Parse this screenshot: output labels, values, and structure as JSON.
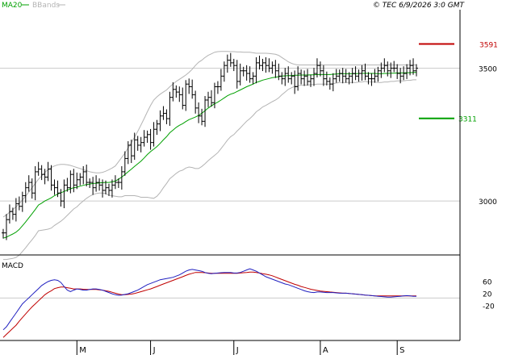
{
  "header": {
    "ma_label": "MA20",
    "bb_label": "BBands",
    "copyright": "© TEC 6/9/2026 3:0 GMT"
  },
  "colors": {
    "ma": "#00a000",
    "bb": "#b4b4b4",
    "price": "#000000",
    "resistance": "#c00000",
    "support": "#00a000",
    "macd": "#2020c0",
    "signal": "#c00000",
    "grid": "#cccccc",
    "axis": "#000000"
  },
  "chart_data": [
    {
      "type": "ohlc",
      "title": "",
      "y_ticks": [
        {
          "value": 3000,
          "label": "3000"
        },
        {
          "value": 3500,
          "label": "3500"
        }
      ],
      "ylim": [
        2800,
        3720
      ],
      "resistance": {
        "value": 3591,
        "label": "3591"
      },
      "support": {
        "value": 3311,
        "label": "3311"
      },
      "months": [
        {
          "label": "M",
          "index": 23
        },
        {
          "label": "J",
          "index": 46
        },
        {
          "label": "J",
          "index": 72
        },
        {
          "label": "A",
          "index": 99
        },
        {
          "label": "S",
          "index": 123
        }
      ],
      "close": [
        2880,
        2930,
        2960,
        2950,
        2990,
        2980,
        3020,
        3050,
        3070,
        3030,
        3110,
        3120,
        3100,
        3090,
        3120,
        3060,
        3050,
        3030,
        3000,
        3060,
        3050,
        3100,
        3060,
        3080,
        3090,
        3110,
        3070,
        3070,
        3050,
        3070,
        3060,
        3040,
        3050,
        3040,
        3060,
        3070,
        3070,
        3110,
        3160,
        3210,
        3170,
        3230,
        3210,
        3220,
        3240,
        3250,
        3220,
        3270,
        3290,
        3320,
        3330,
        3310,
        3390,
        3420,
        3410,
        3400,
        3360,
        3440,
        3430,
        3400,
        3350,
        3320,
        3300,
        3380,
        3390,
        3370,
        3430,
        3430,
        3470,
        3510,
        3530,
        3520,
        3510,
        3450,
        3490,
        3490,
        3480,
        3460,
        3470,
        3520,
        3510,
        3520,
        3510,
        3500,
        3510,
        3490,
        3470,
        3460,
        3480,
        3460,
        3470,
        3430,
        3480,
        3460,
        3470,
        3450,
        3460,
        3480,
        3510,
        3490,
        3460,
        3450,
        3440,
        3460,
        3470,
        3480,
        3470,
        3460,
        3470,
        3480,
        3470,
        3480,
        3490,
        3470,
        3460,
        3460,
        3470,
        3490,
        3500,
        3510,
        3490,
        3500,
        3500,
        3480,
        3470,
        3480,
        3500,
        3510,
        3490,
        3500
      ],
      "ma20": [
        2860,
        2864,
        2870,
        2876,
        2883,
        2893,
        2907,
        2921,
        2937,
        2952,
        2968,
        2985,
        2992,
        3000,
        3006,
        3012,
        3020,
        3026,
        3031,
        3036,
        3041,
        3046,
        3050,
        3052,
        3056,
        3059,
        3062,
        3064,
        3066,
        3067,
        3068,
        3069,
        3070,
        3070,
        3072,
        3075,
        3082,
        3090,
        3100,
        3110,
        3120,
        3130,
        3140,
        3150,
        3162,
        3175,
        3186,
        3195,
        3205,
        3217,
        3230,
        3242,
        3257,
        3267,
        3277,
        3285,
        3291,
        3299,
        3306,
        3311,
        3316,
        3322,
        3330,
        3340,
        3350,
        3358,
        3366,
        3372,
        3380,
        3388,
        3396,
        3402,
        3406,
        3412,
        3418,
        3424,
        3430,
        3435,
        3440,
        3446,
        3450,
        3455,
        3458,
        3461,
        3464,
        3466,
        3468,
        3470,
        3471,
        3472,
        3472,
        3473,
        3473,
        3474,
        3474,
        3474,
        3475,
        3475,
        3476,
        3476,
        3476,
        3476,
        3476,
        3477,
        3478,
        3479,
        3479,
        3479,
        3479,
        3479,
        3479,
        3480,
        3480,
        3481,
        3480,
        3480,
        3480,
        3479,
        3479,
        3480,
        3480,
        3481,
        3481,
        3482,
        3482,
        3482,
        3483,
        3483,
        3484,
        3484
      ],
      "bb_upper": [
        2940,
        2948,
        2958,
        2968,
        2978,
        2990,
        3004,
        3018,
        3034,
        3050,
        3066,
        3082,
        3094,
        3108,
        3118,
        3126,
        3132,
        3136,
        3138,
        3138,
        3136,
        3134,
        3130,
        3126,
        3122,
        3118,
        3114,
        3110,
        3108,
        3106,
        3106,
        3108,
        3112,
        3118,
        3124,
        3132,
        3148,
        3164,
        3180,
        3200,
        3220,
        3240,
        3262,
        3286,
        3310,
        3336,
        3360,
        3380,
        3392,
        3402,
        3410,
        3418,
        3430,
        3440,
        3450,
        3458,
        3466,
        3474,
        3484,
        3496,
        3510,
        3522,
        3530,
        3540,
        3548,
        3554,
        3560,
        3562,
        3563,
        3563,
        3563,
        3562,
        3562,
        3561,
        3561,
        3560,
        3560,
        3560,
        3558,
        3556,
        3556,
        3556,
        3556,
        3555,
        3554,
        3552,
        3548,
        3540,
        3532,
        3524,
        3518,
        3514,
        3512,
        3512,
        3512,
        3512,
        3512,
        3512,
        3512,
        3512,
        3512,
        3512,
        3512,
        3512,
        3512,
        3512,
        3512,
        3512,
        3512,
        3512,
        3512,
        3512,
        3512,
        3512,
        3512,
        3512,
        3512,
        3512,
        3512,
        3512,
        3512,
        3512,
        3512,
        3512,
        3512,
        3512,
        3512,
        3512,
        3512,
        3512
      ],
      "bb_lower": [
        2780,
        2780,
        2782,
        2784,
        2788,
        2796,
        2810,
        2824,
        2840,
        2854,
        2870,
        2888,
        2890,
        2892,
        2894,
        2898,
        2908,
        2916,
        2924,
        2934,
        2946,
        2958,
        2970,
        2978,
        2990,
        3000,
        3010,
        3018,
        3024,
        3028,
        3030,
        3030,
        3028,
        3022,
        3020,
        3018,
        3016,
        3016,
        3020,
        3020,
        3020,
        3020,
        3018,
        3014,
        3014,
        3014,
        3012,
        3010,
        3018,
        3032,
        3050,
        3066,
        3084,
        3094,
        3104,
        3112,
        3116,
        3124,
        3128,
        3126,
        3122,
        3122,
        3130,
        3140,
        3152,
        3162,
        3172,
        3182,
        3197,
        3213,
        3229,
        3242,
        3250,
        3263,
        3275,
        3288,
        3300,
        3310,
        3322,
        3336,
        3344,
        3354,
        3360,
        3367,
        3374,
        3380,
        3388,
        3400,
        3410,
        3420,
        3426,
        3432,
        3434,
        3436,
        3436,
        3436,
        3438,
        3438,
        3440,
        3440,
        3440,
        3440,
        3440,
        3442,
        3444,
        3446,
        3446,
        3446,
        3446,
        3446,
        3446,
        3448,
        3448,
        3450,
        3448,
        3448,
        3448,
        3446,
        3446,
        3448,
        3448,
        3450,
        3450,
        3452,
        3452,
        3452,
        3454,
        3454,
        3456,
        3456
      ]
    },
    {
      "type": "line",
      "title": "MACD",
      "y_ticks": [
        {
          "value": 60,
          "label": "60"
        },
        {
          "value": 20,
          "label": "20"
        },
        {
          "value": -20,
          "label": "-20"
        }
      ],
      "ylim": [
        -135,
        140
      ],
      "macd": [
        -100,
        -90,
        -75,
        -60,
        -45,
        -30,
        -15,
        -5,
        5,
        15,
        25,
        35,
        45,
        52,
        58,
        62,
        64,
        62,
        55,
        42,
        30,
        25,
        30,
        34,
        32,
        30,
        30,
        32,
        34,
        34,
        32,
        30,
        26,
        22,
        18,
        15,
        13,
        14,
        16,
        18,
        22,
        26,
        30,
        36,
        42,
        48,
        52,
        56,
        60,
        64,
        66,
        68,
        70,
        72,
        76,
        80,
        86,
        92,
        96,
        98,
        96,
        94,
        92,
        88,
        85,
        84,
        85,
        86,
        87,
        88,
        88,
        88,
        86,
        86,
        88,
        92,
        96,
        100,
        96,
        92,
        86,
        80,
        74,
        70,
        66,
        62,
        58,
        54,
        50,
        48,
        44,
        40,
        36,
        32,
        28,
        25,
        23,
        22,
        24,
        24,
        23,
        22,
        22,
        22,
        21,
        20,
        20,
        20,
        19,
        18,
        17,
        16,
        15,
        14,
        13,
        12,
        11,
        10,
        9,
        8,
        7,
        7,
        8,
        9,
        10,
        11,
        12,
        11,
        10,
        10
      ],
      "signal": [
        -125,
        -115,
        -105,
        -95,
        -85,
        -72,
        -60,
        -48,
        -36,
        -25,
        -15,
        -5,
        5,
        15,
        22,
        28,
        35,
        38,
        40,
        40,
        38,
        36,
        34,
        34,
        34,
        33,
        32,
        32,
        32,
        32,
        31,
        30,
        28,
        26,
        23,
        20,
        17,
        15,
        15,
        16,
        17,
        19,
        22,
        25,
        28,
        31,
        34,
        38,
        42,
        46,
        50,
        54,
        58,
        62,
        66,
        70,
        74,
        78,
        82,
        85,
        88,
        88,
        88,
        87,
        86,
        85,
        85,
        85,
        85,
        85,
        85,
        85,
        85,
        85,
        86,
        87,
        88,
        89,
        89,
        88,
        86,
        84,
        82,
        80,
        77,
        73,
        69,
        65,
        61,
        57,
        53,
        49,
        46,
        42,
        39,
        36,
        33,
        31,
        29,
        27,
        26,
        25,
        24,
        23,
        22,
        21,
        20,
        20,
        19,
        18,
        17,
        16,
        15,
        14,
        13,
        12,
        11,
        11,
        11,
        11,
        11,
        11,
        11,
        11,
        11,
        11,
        11,
        11,
        11,
        11
      ]
    }
  ]
}
